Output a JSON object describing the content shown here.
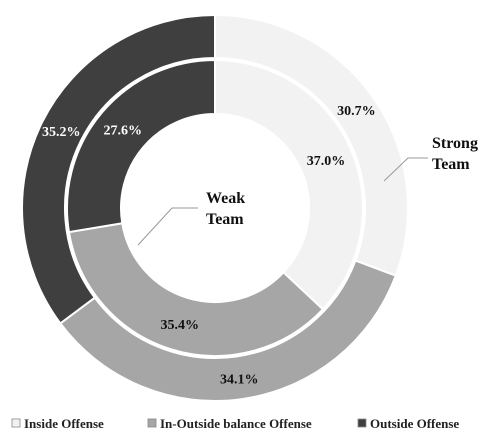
{
  "chart_data": {
    "type": "donut",
    "categories": [
      "Inside Offense",
      "In-Outside balance Offense",
      "Outside Offense"
    ],
    "colors": {
      "Inside Offense": "#f2f2f2",
      "In-Outside balance Offense": "#a6a6a6",
      "Outside Offense": "#3f3f3f"
    },
    "series": [
      {
        "name": "Strong Team",
        "ring": "outer",
        "values": [
          30.7,
          34.1,
          35.2
        ],
        "labels": [
          "30.7%",
          "34.1%",
          "35.2%"
        ]
      },
      {
        "name": "Weak Team",
        "ring": "inner",
        "values": [
          37.0,
          35.4,
          27.6
        ],
        "labels": [
          "37.0%",
          "35.4%",
          "27.6%"
        ]
      }
    ],
    "legend": {
      "position": "bottom",
      "entries": [
        "Inside Offense",
        "In-Outside balance Offense",
        "Outside Offense"
      ]
    }
  }
}
